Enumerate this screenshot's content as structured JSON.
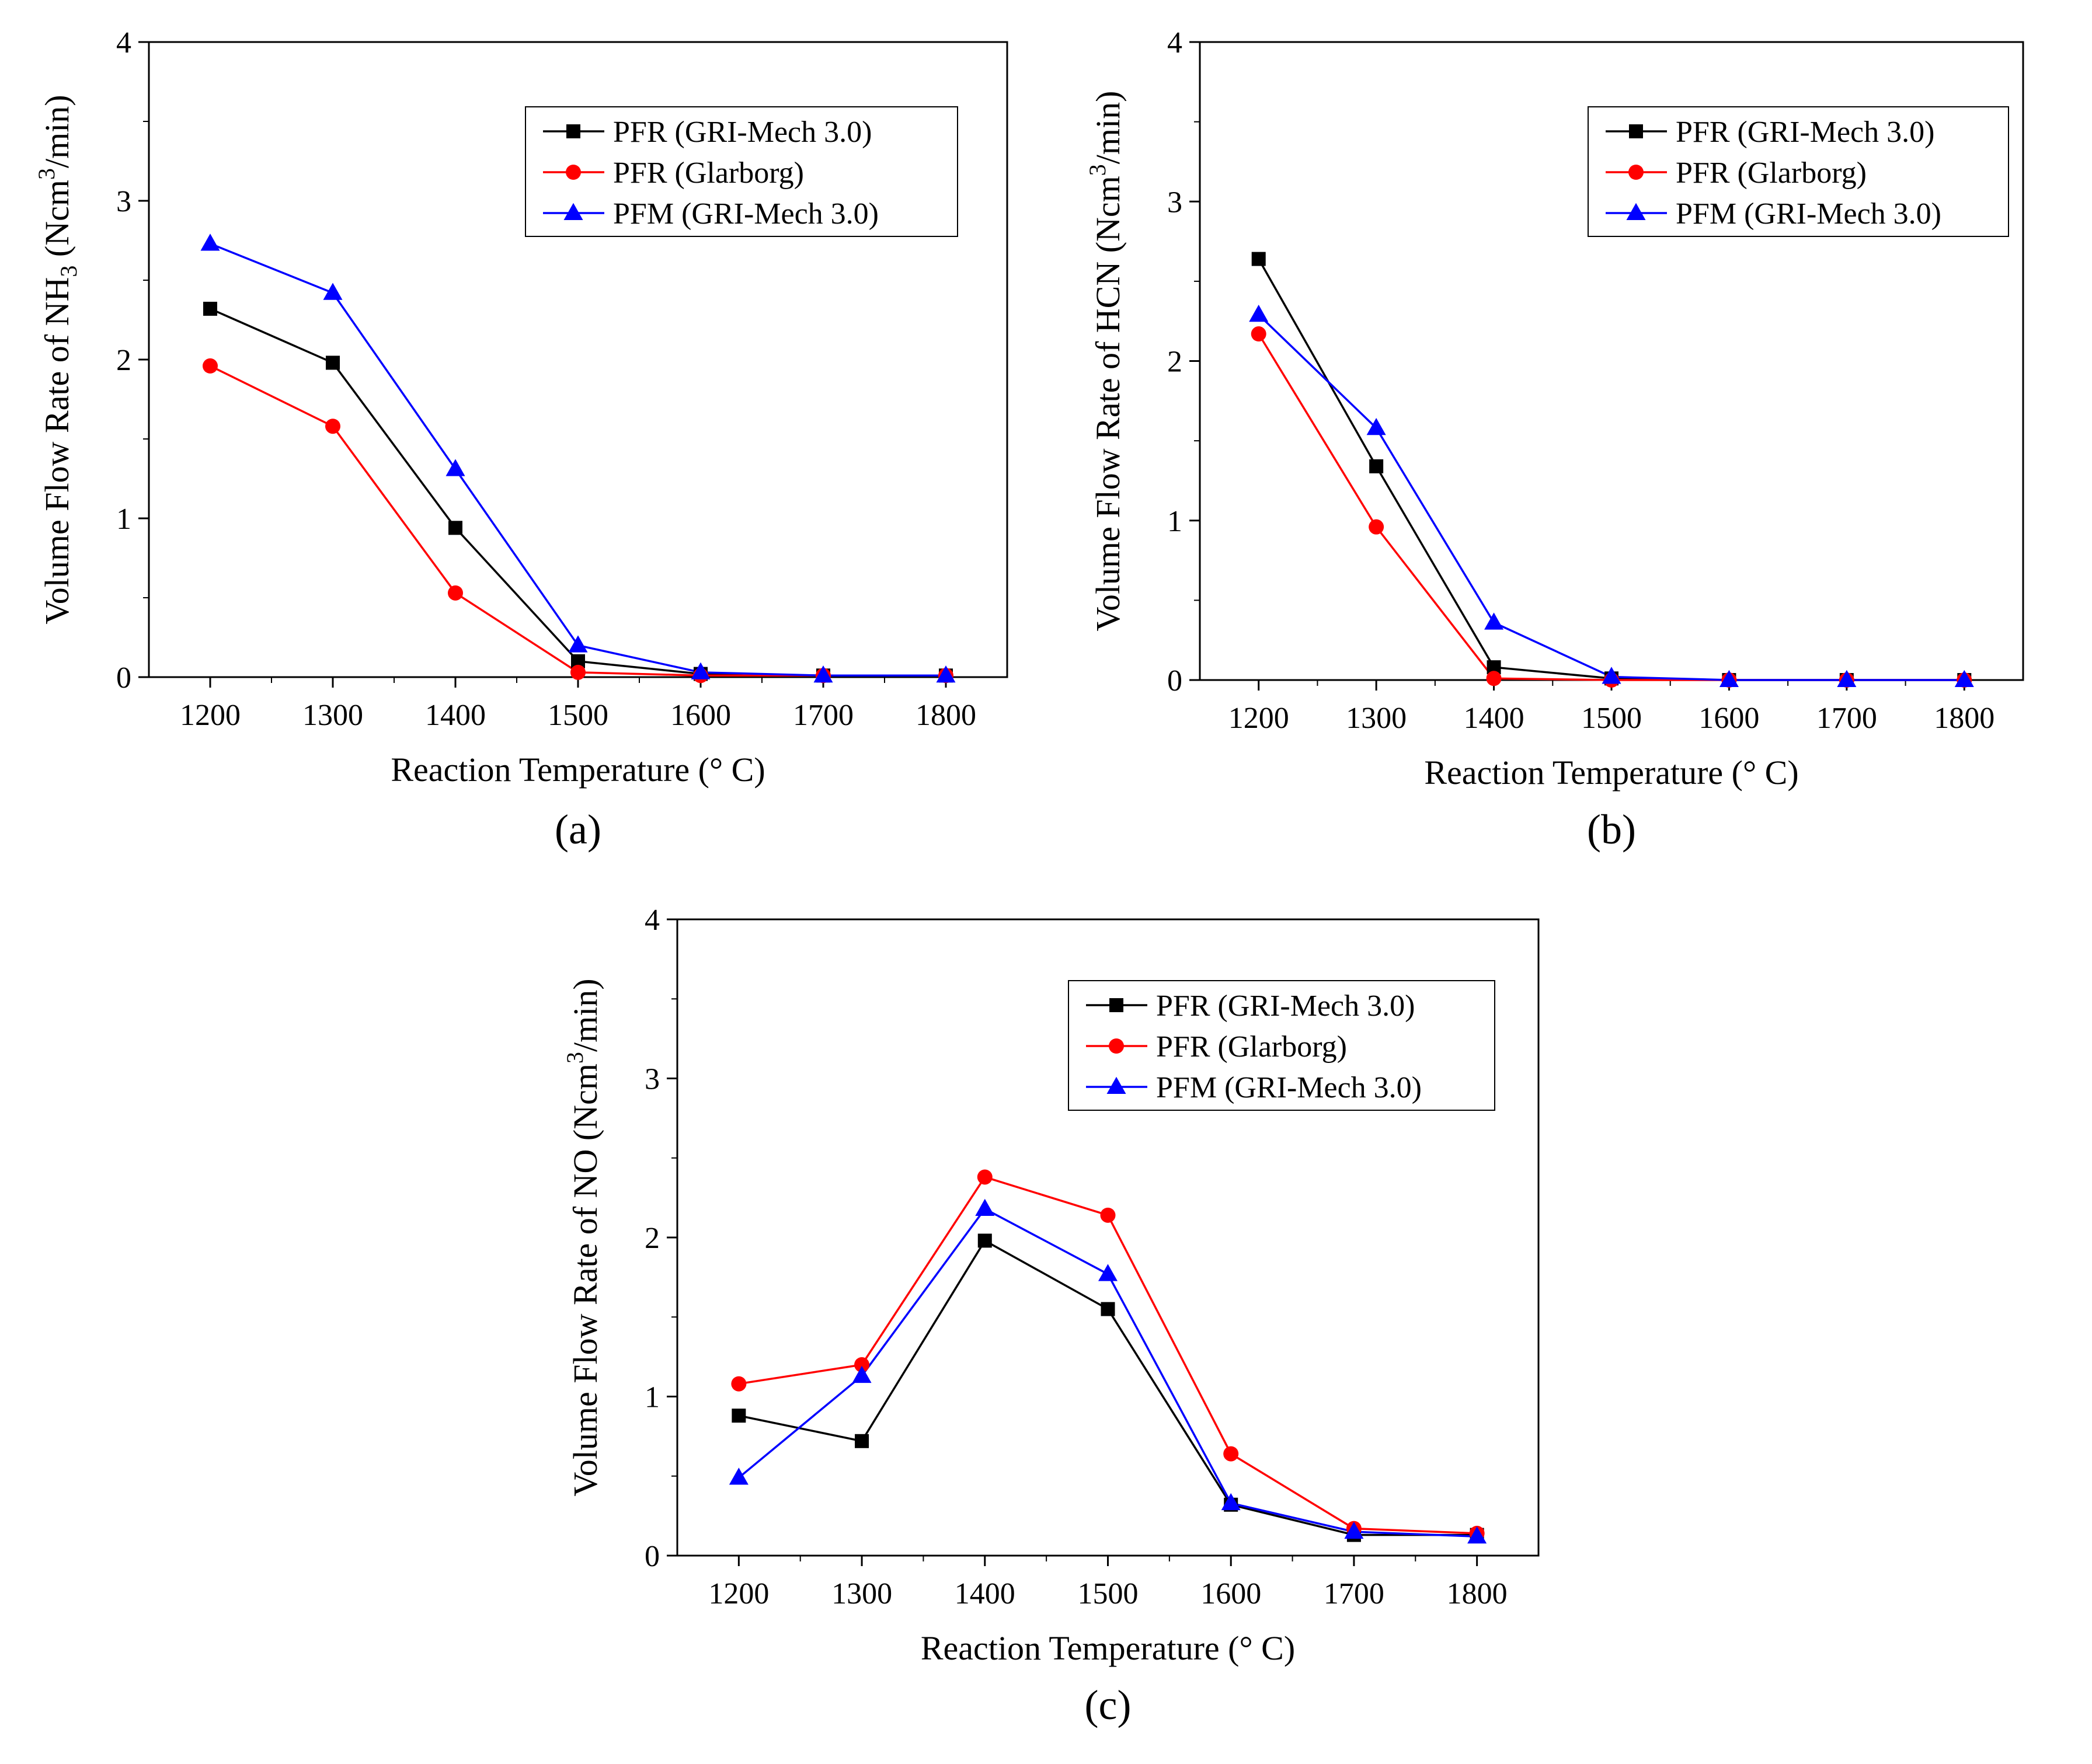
{
  "figure": {
    "colors": {
      "series_0": "#000000",
      "series_1": "#ff0000",
      "series_2": "#0000ff"
    },
    "markers": [
      "square",
      "circle",
      "triangle"
    ]
  },
  "chart_data": [
    {
      "type": "line",
      "caption": "(a)",
      "title": "",
      "xlabel": "Reaction Temperature (° C)",
      "ylabel_prefix": "Volume Flow Rate of NH",
      "ylabel_sub": "3",
      "ylabel_mid": " (Ncm",
      "ylabel_sup": "3",
      "ylabel_suffix": "/min)",
      "xlim": [
        1150,
        1850
      ],
      "ylim": [
        0,
        4
      ],
      "x": [
        1200,
        1300,
        1400,
        1500,
        1600,
        1700,
        1800
      ],
      "x_tick_labels": [
        "1200",
        "1300",
        "1400",
        "1500",
        "1600",
        "1700",
        "1800"
      ],
      "y_ticks": [
        0,
        1,
        2,
        3,
        4
      ],
      "y_tick_labels": [
        "0",
        "1",
        "2",
        "3",
        "4"
      ],
      "legend_position": "top-right",
      "series": [
        {
          "name": "PFR (GRI-Mech 3.0)",
          "values": [
            2.32,
            1.98,
            0.94,
            0.1,
            0.02,
            0.01,
            0.01
          ]
        },
        {
          "name": "PFR (Glarborg)",
          "values": [
            1.96,
            1.58,
            0.53,
            0.03,
            0.01,
            0.01,
            0.01
          ]
        },
        {
          "name": "PFM (GRI-Mech 3.0)",
          "values": [
            2.73,
            2.42,
            1.31,
            0.2,
            0.03,
            0.01,
            0.01
          ]
        }
      ]
    },
    {
      "type": "line",
      "caption": "(b)",
      "title": "",
      "xlabel": "Reaction Temperature (° C)",
      "ylabel_prefix": "Volume Flow Rate of HCN",
      "ylabel_sub": "",
      "ylabel_mid": " (Ncm",
      "ylabel_sup": "3",
      "ylabel_suffix": "/min)",
      "xlim": [
        1150,
        1850
      ],
      "ylim": [
        0,
        4
      ],
      "x": [
        1200,
        1300,
        1400,
        1500,
        1600,
        1700,
        1800
      ],
      "x_tick_labels": [
        "1200",
        "1300",
        "1400",
        "1500",
        "1600",
        "1700",
        "1800"
      ],
      "y_ticks": [
        0,
        1,
        2,
        3,
        4
      ],
      "y_tick_labels": [
        "0",
        "1",
        "2",
        "3",
        "4"
      ],
      "legend_position": "top-right",
      "series": [
        {
          "name": "PFR (GRI-Mech 3.0)",
          "values": [
            2.64,
            1.34,
            0.08,
            0.01,
            0.0,
            0.0,
            0.0
          ]
        },
        {
          "name": "PFR (Glarborg)",
          "values": [
            2.17,
            0.96,
            0.01,
            0.0,
            0.0,
            0.0,
            0.0
          ]
        },
        {
          "name": "PFM (GRI-Mech 3.0)",
          "values": [
            2.29,
            1.58,
            0.36,
            0.02,
            0.0,
            0.0,
            0.0
          ]
        }
      ]
    },
    {
      "type": "line",
      "caption": "(c)",
      "title": "",
      "xlabel": "Reaction Temperature (° C)",
      "ylabel_prefix": "Volume Flow Rate of NO",
      "ylabel_sub": "",
      "ylabel_mid": " (Ncm",
      "ylabel_sup": "3",
      "ylabel_suffix": "/min)",
      "xlim": [
        1150,
        1850
      ],
      "ylim": [
        0,
        4
      ],
      "x": [
        1200,
        1300,
        1400,
        1500,
        1600,
        1700,
        1800
      ],
      "x_tick_labels": [
        "1200",
        "1300",
        "1400",
        "1500",
        "1600",
        "1700",
        "1800"
      ],
      "y_ticks": [
        0,
        1,
        2,
        3,
        4
      ],
      "y_tick_labels": [
        "0",
        "1",
        "2",
        "3",
        "4"
      ],
      "legend_position": "top-right",
      "series": [
        {
          "name": "PFR (GRI-Mech 3.0)",
          "values": [
            0.88,
            0.72,
            1.98,
            1.55,
            0.32,
            0.13,
            0.13
          ]
        },
        {
          "name": "PFR (Glarborg)",
          "values": [
            1.08,
            1.2,
            2.38,
            2.14,
            0.64,
            0.17,
            0.14
          ]
        },
        {
          "name": "PFM (GRI-Mech 3.0)",
          "values": [
            0.49,
            1.13,
            2.18,
            1.77,
            0.33,
            0.15,
            0.12
          ]
        }
      ]
    }
  ]
}
